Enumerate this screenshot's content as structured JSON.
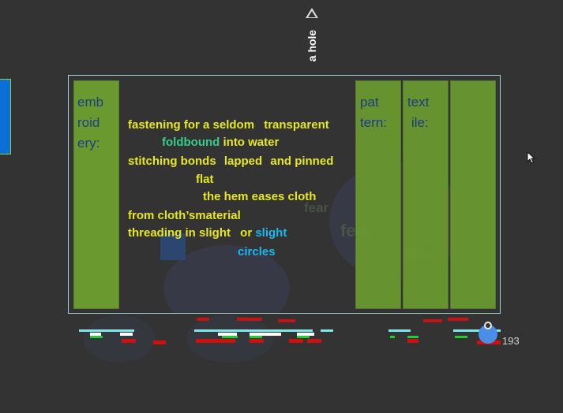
{
  "hole_label": "a hole",
  "columns": {
    "left": [
      "emb",
      "roid",
      "ery:"
    ],
    "pattern": [
      "pat",
      "tern:"
    ],
    "textile": [
      "text",
      "ile:"
    ]
  },
  "poem": {
    "line1": [
      "fastening for a seldom",
      "transparent"
    ],
    "line2": [
      "foldbound",
      "into water"
    ],
    "line3": [
      "stitching bonds",
      "lapped",
      "and pinned"
    ],
    "line4": "flat",
    "line5": "the hem eases cloth",
    "line6": "from cloth’smaterial",
    "line7": [
      "threading in slight",
      "or",
      "slight"
    ],
    "line8": "circles"
  },
  "background_words": [
    "fear",
    "fear",
    "fear"
  ],
  "counter": "193",
  "colors": {
    "background": "#333333",
    "column_green": "#6a9a2f",
    "poem_yellow": "#e8e81e",
    "accent_teal": "#32d08c",
    "accent_cyan": "#1ab8f0",
    "column_text": "#1b3d8a"
  }
}
